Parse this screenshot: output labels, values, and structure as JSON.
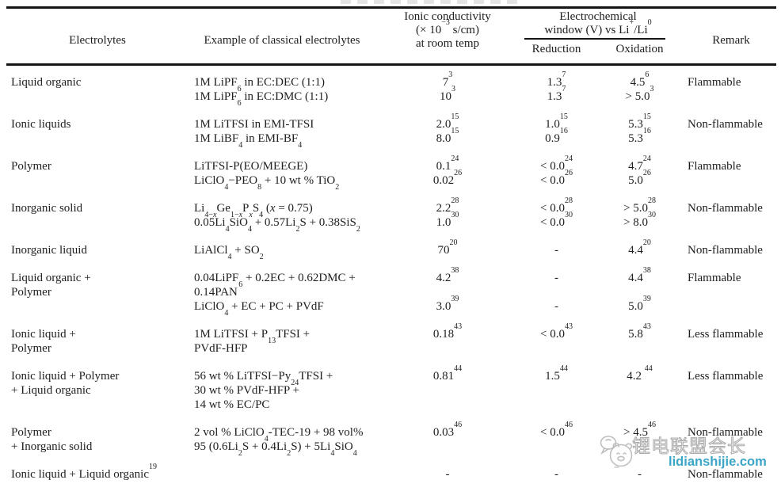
{
  "header": {
    "electrolytes": "Electrolytes",
    "example": "Example of classical electrolytes",
    "conductivity_lines": [
      "Ionic conductivity",
      "(× 10<sup>−3</sup> s/cm)",
      "at room temp"
    ],
    "window_lines": [
      "Electrochemical",
      "window (V) vs Li<sup>+</sup>/Li<sup>0</sup>"
    ],
    "reduction": "Reduction",
    "oxidation": "Oxidation",
    "remark": "Remark"
  },
  "groups": [
    {
      "electrolyte": [
        "Liquid organic"
      ],
      "entries": [
        {
          "example": [
            "1M LiPF<sub>6</sub> in EC:DEC (1:1)"
          ],
          "cond": "7<sup>3</sup>",
          "red": "1.3<sup>7</sup>",
          "ox": "4.5<sup>6</sup>"
        },
        {
          "example": [
            "1M LiPF<sub>6</sub> in EC:DMC (1:1)"
          ],
          "cond": "10<sup>3</sup>",
          "red": "1.3<sup>7</sup>",
          "ox": "&gt; 5.0<sup>3</sup>"
        }
      ],
      "remark": "Flammable"
    },
    {
      "electrolyte": [
        "Ionic liquids"
      ],
      "entries": [
        {
          "example": [
            "1M LiTFSI in EMI-TFSI"
          ],
          "cond": "2.0<sup>15</sup>",
          "red": "1.0<sup>15</sup>",
          "ox": "5.3<sup>15</sup>"
        },
        {
          "example": [
            "1M LiBF<sub>4</sub> in EMI-BF<sub>4</sub>"
          ],
          "cond": "8.0<sup>15</sup>",
          "red": "0.9<sup>16</sup>",
          "ox": "5.3<sup>16</sup>"
        }
      ],
      "remark": "Non-flammable"
    },
    {
      "electrolyte": [
        "Polymer"
      ],
      "entries": [
        {
          "example": [
            "LiTFSI-P(EO/MEEGE)"
          ],
          "cond": "0.1<sup>24</sup>",
          "red": "&lt; 0.0<sup>24</sup>",
          "ox": "4.7<sup>24</sup>"
        },
        {
          "example": [
            "LiClO<sub>4</sub>−PEO<sub>8</sub> + 10 wt % TiO<sub>2</sub>"
          ],
          "cond": "0.02<sup>26</sup>",
          "red": "&lt; 0.0<sup>26</sup>",
          "ox": "5.0<sup>26</sup>"
        }
      ],
      "remark": "Flammable"
    },
    {
      "electrolyte": [
        "Inorganic solid"
      ],
      "entries": [
        {
          "example": [
            "Li<sub>4−<i>x</i></sub>Ge<sub>1−<i>x</i></sub>P<sub><i>x</i></sub>S<sub>4</sub> (<i>x</i> = 0.75)"
          ],
          "cond": "2.2<sup>28</sup>",
          "red": "&lt; 0.0<sup>28</sup>",
          "ox": "&gt; 5.0<sup>28</sup>"
        },
        {
          "example": [
            "0.05Li<sub>4</sub>SiO<sub>4</sub> + 0.57Li<sub>2</sub>S + 0.38SiS<sub>2</sub>"
          ],
          "cond": "1.0<sup>30</sup>",
          "red": "&lt; 0.0<sup>30</sup>",
          "ox": "&gt; 8.0<sup>30</sup>"
        }
      ],
      "remark": "Non-flammable"
    },
    {
      "electrolyte": [
        "Inorganic liquid"
      ],
      "entries": [
        {
          "example": [
            "LiAlCl<sub>4</sub> + SO<sub>2</sub>"
          ],
          "cond": "70<sup>20</sup>",
          "red": "-",
          "ox": "4.4<sup>20</sup>"
        }
      ],
      "remark": "Non-flammable"
    },
    {
      "electrolyte": [
        "Liquid organic +",
        "Polymer"
      ],
      "entries": [
        {
          "example": [
            "0.04LiPF<sub>6</sub> + 0.2EC + 0.62DMC +",
            "0.14PAN"
          ],
          "cond": "4.2<sup>38</sup>",
          "red": "-",
          "ox": "4.4<sup>38</sup>"
        },
        {
          "example": [
            "LiClO<sub>4</sub> + EC + PC + PVdF"
          ],
          "cond": "3.0<sup>39</sup>",
          "red": "-",
          "ox": "5.0<sup>39</sup>"
        }
      ],
      "remark": "Flammable"
    },
    {
      "electrolyte": [
        "Ionic liquid +",
        "Polymer"
      ],
      "entries": [
        {
          "example": [
            "1M LiTFSI + P<sub>13</sub>TFSI +",
            "PVdF-HFP"
          ],
          "cond": "0.18<sup>43</sup>",
          "red": "&lt; 0.0<sup>43</sup>",
          "ox": "5.8<sup>43</sup>"
        }
      ],
      "remark": "Less flammable"
    },
    {
      "electrolyte": [
        "Ionic liquid + Polymer",
        "+ Liquid organic"
      ],
      "entries": [
        {
          "example": [
            "56 wt % LiTFSI−Py<sub>24</sub>TFSI +",
            "30 wt % PVdF-HFP +",
            "14 wt % EC/PC"
          ],
          "cond": "0.81<sup>44</sup>",
          "red": "1.5<sup>44</sup>",
          "ox": "4.2 <sup>44</sup>"
        }
      ],
      "remark": "Less flammable"
    },
    {
      "electrolyte": [
        "Polymer",
        "+ Inorganic solid"
      ],
      "entries": [
        {
          "example": [
            "2 vol % LiClO<sub>4</sub>-TEC-19 + 98 vol%",
            "95 (0.6Li<sub>2</sub>S + 0.4Li<sub>2</sub>S) + 5Li<sub>4</sub>SiO<sub>4</sub>"
          ],
          "cond": "0.03<sup>46</sup>",
          "red": "&lt; 0.0<sup>46</sup>",
          "ox": "&gt; 4.5<sup>46</sup>"
        }
      ],
      "remark": "Non-flammable"
    },
    {
      "electrolyte": [
        "Ionic liquid + Liquid organic<sup>19</sup>"
      ],
      "entries": [
        {
          "example": [],
          "cond": "-",
          "red": "-",
          "ox": "-"
        }
      ],
      "remark": "Non-flammable"
    }
  ],
  "watermark": {
    "cn_text": "锂电联盟会长",
    "site": "lidianshijie.com",
    "accent_color": "#3ba6c8",
    "icon": "megaphone-mascot-icon"
  }
}
